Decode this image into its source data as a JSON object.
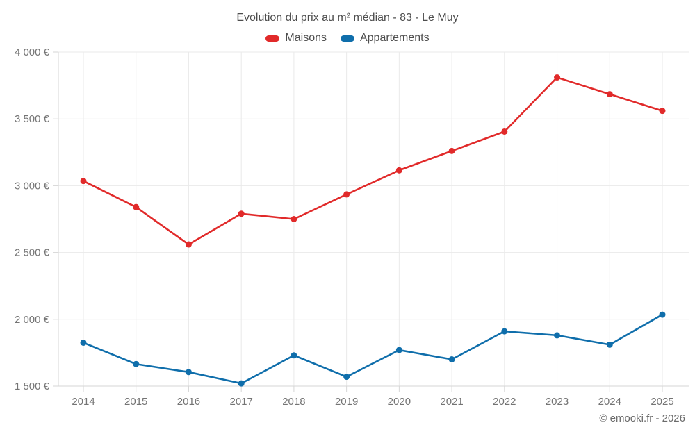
{
  "header": {
    "title": "Evolution du prix au m² médian - 83 - Le Muy"
  },
  "footer": {
    "credit": "© emooki.fr - 2026"
  },
  "chart_data": {
    "type": "line",
    "title": "Evolution du prix au m² médian - 83 - Le Muy",
    "legend_position": "top",
    "grid": true,
    "categories": [
      "2014",
      "2015",
      "2016",
      "2017",
      "2018",
      "2019",
      "2020",
      "2021",
      "2022",
      "2023",
      "2024",
      "2025"
    ],
    "series": [
      {
        "name": "Maisons",
        "color": "#e12a2a",
        "values": [
          3035,
          2840,
          2560,
          2790,
          2750,
          2935,
          3115,
          3260,
          3405,
          3810,
          3685,
          3560
        ]
      },
      {
        "name": "Appartements",
        "color": "#0f6eab",
        "values": [
          1825,
          1665,
          1605,
          1520,
          1730,
          1570,
          1770,
          1700,
          1910,
          1880,
          1810,
          2035
        ]
      }
    ],
    "xlabel": "",
    "ylabel": "",
    "ylim": [
      1500,
      4000
    ],
    "yticks": [
      {
        "value": 4000,
        "label": "4 000 €"
      },
      {
        "value": 3500,
        "label": "3 500 €"
      },
      {
        "value": 3000,
        "label": "3 000 €"
      },
      {
        "value": 2500,
        "label": "2 500 €"
      },
      {
        "value": 2000,
        "label": "2 000 €"
      },
      {
        "value": 1500,
        "label": "1 500 €"
      }
    ]
  },
  "style": {
    "grid_color": "#eaeaea",
    "axis_color": "#d6d6d6",
    "tick_label_color": "#747474",
    "title_color": "#4d4d4d",
    "footer_color": "#6b6b6b"
  }
}
